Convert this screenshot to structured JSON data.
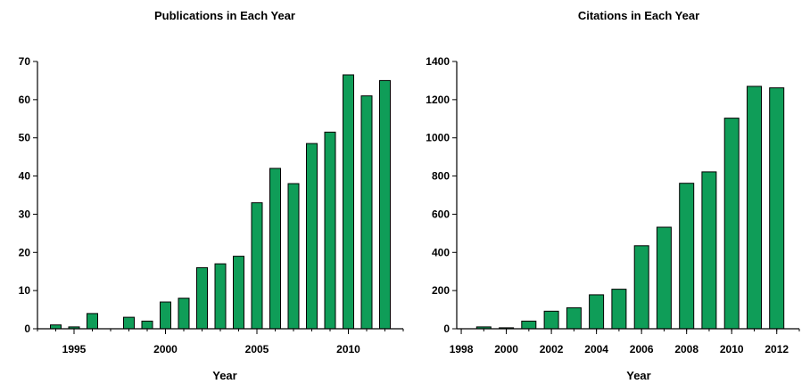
{
  "colors": {
    "bar_fill": "#0f9d58",
    "bar_stroke": "#000000",
    "axis": "#000000",
    "background": "#ffffff"
  },
  "chart_data": [
    {
      "type": "bar",
      "title": "Publications in Each Year",
      "xlabel": "Year",
      "ylabel": "",
      "xlim": [
        1993,
        2013
      ],
      "ylim": [
        0,
        70
      ],
      "yticks": [
        0,
        10,
        20,
        30,
        40,
        50,
        60,
        70
      ],
      "xticks": [
        1995,
        2000,
        2005,
        2010
      ],
      "grid": false,
      "points": [
        {
          "x": 1994,
          "y": 1
        },
        {
          "x": 1995,
          "y": 0.5
        },
        {
          "x": 1996,
          "y": 4
        },
        {
          "x": 1998,
          "y": 3
        },
        {
          "x": 1999,
          "y": 2
        },
        {
          "x": 2000,
          "y": 7
        },
        {
          "x": 2001,
          "y": 8
        },
        {
          "x": 2002,
          "y": 16
        },
        {
          "x": 2003,
          "y": 17
        },
        {
          "x": 2004,
          "y": 19
        },
        {
          "x": 2005,
          "y": 33
        },
        {
          "x": 2006,
          "y": 42
        },
        {
          "x": 2007,
          "y": 38
        },
        {
          "x": 2008,
          "y": 48.5
        },
        {
          "x": 2009,
          "y": 51.5
        },
        {
          "x": 2010,
          "y": 66.5
        },
        {
          "x": 2011,
          "y": 61
        },
        {
          "x": 2012,
          "y": 65
        }
      ]
    },
    {
      "type": "bar",
      "title": "Citations in Each Year",
      "xlabel": "Year",
      "ylabel": "",
      "xlim": [
        1997.8,
        2013
      ],
      "ylim": [
        0,
        1400
      ],
      "yticks": [
        0,
        200,
        400,
        600,
        800,
        1000,
        1200,
        1400
      ],
      "xticks": [
        1998,
        2000,
        2002,
        2004,
        2006,
        2008,
        2010,
        2012
      ],
      "grid": false,
      "points": [
        {
          "x": 1999,
          "y": 10
        },
        {
          "x": 2000,
          "y": 5
        },
        {
          "x": 2001,
          "y": 40
        },
        {
          "x": 2002,
          "y": 92
        },
        {
          "x": 2003,
          "y": 110
        },
        {
          "x": 2004,
          "y": 178
        },
        {
          "x": 2005,
          "y": 207
        },
        {
          "x": 2006,
          "y": 435
        },
        {
          "x": 2007,
          "y": 532
        },
        {
          "x": 2008,
          "y": 762
        },
        {
          "x": 2009,
          "y": 822
        },
        {
          "x": 2010,
          "y": 1103
        },
        {
          "x": 2011,
          "y": 1270
        },
        {
          "x": 2012,
          "y": 1262
        }
      ]
    }
  ]
}
